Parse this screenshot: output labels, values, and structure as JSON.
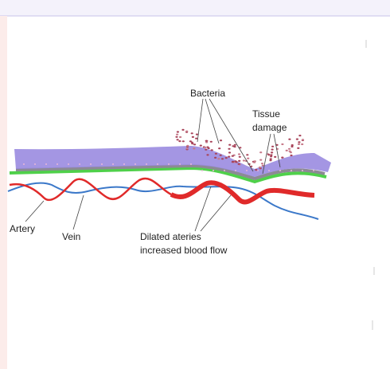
{
  "labels": {
    "bacteria": "Bacteria",
    "tissue_damage": [
      "Tissue",
      "damage"
    ],
    "artery": "Artery",
    "vein": "Vein",
    "dilated": [
      "Dilated ateries",
      "increased blood flow"
    ]
  }
}
